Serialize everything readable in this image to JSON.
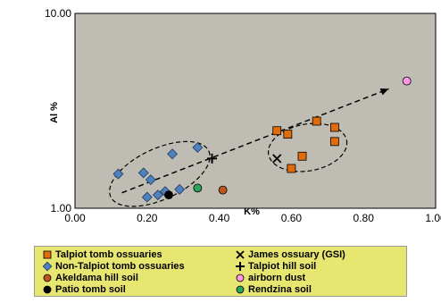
{
  "chart_data": {
    "type": "scatter",
    "xlabel": "K%",
    "ylabel": "Al %",
    "xlim": [
      0,
      1
    ],
    "ylim": [
      1,
      10
    ],
    "y_scale": "log",
    "x_ticks": [
      "0.00",
      "0.20",
      "0.40",
      "0.60",
      "0.80",
      "1.00"
    ],
    "y_ticks": [
      "1.00",
      "10.00"
    ],
    "grid": false,
    "legend_position": "bottom",
    "colors": {
      "plot_bg": "#bfbdb3",
      "talpiot": "#e36c0a",
      "non_talpiot": "#4f81bd",
      "akeldama": "#c0561e",
      "airborn": "#ff99e6",
      "patio": "#000000",
      "rendzina": "#29a65a",
      "legend_bg": "#e6e671"
    },
    "series": [
      {
        "name": "Talpiot tomb ossuaries",
        "marker": "square",
        "points": [
          [
            0.56,
            2.5
          ],
          [
            0.59,
            2.4
          ],
          [
            0.67,
            2.8
          ],
          [
            0.72,
            2.6
          ],
          [
            0.72,
            2.2
          ],
          [
            0.63,
            1.85
          ],
          [
            0.6,
            1.6
          ]
        ]
      },
      {
        "name": "Non-Talpiot tomb ossuaries",
        "marker": "diamond",
        "points": [
          [
            0.12,
            1.5
          ],
          [
            0.19,
            1.52
          ],
          [
            0.21,
            1.4
          ],
          [
            0.27,
            1.9
          ],
          [
            0.34,
            2.05
          ],
          [
            0.25,
            1.22
          ],
          [
            0.23,
            1.17
          ],
          [
            0.2,
            1.14
          ],
          [
            0.29,
            1.25
          ]
        ]
      },
      {
        "name": "Akeldama hill soil",
        "marker": "circle",
        "points": [
          [
            0.41,
            1.24
          ]
        ]
      },
      {
        "name": "Patio tomb soil",
        "marker": "circle",
        "points": [
          [
            0.26,
            1.17
          ]
        ]
      },
      {
        "name": "James ossuary (GSI)",
        "marker": "x",
        "points": [
          [
            0.56,
            1.8
          ]
        ]
      },
      {
        "name": "Talpiot hill soil",
        "marker": "plus",
        "points": [
          [
            0.38,
            1.8
          ]
        ]
      },
      {
        "name": "airborn dust",
        "marker": "circle",
        "points": [
          [
            0.92,
            4.5
          ]
        ]
      },
      {
        "name": "Rendzina soil",
        "marker": "circle",
        "points": [
          [
            0.34,
            1.27
          ]
        ]
      }
    ],
    "trend_arrow": {
      "from": [
        0.13,
        1.2
      ],
      "to": [
        0.87,
        4.1
      ],
      "style": "dashed"
    },
    "ellipses": [
      {
        "label": "",
        "center": [
          0.235,
          1.5
        ],
        "rx_data": 0.15,
        "ry_decades": 0.13,
        "rotation_deg": -25
      },
      {
        "label": "",
        "center": [
          0.645,
          2.05
        ],
        "rx_data": 0.11,
        "ry_decades": 0.12,
        "rotation_deg": -10
      }
    ]
  },
  "legend": {
    "items": [
      {
        "label": "Talpiot tomb ossuaries",
        "symbol": "square"
      },
      {
        "label": "James ossuary (GSI)",
        "symbol": "x"
      },
      {
        "label": "Non-Talpiot tomb ossuaries",
        "symbol": "diamond"
      },
      {
        "label": "Talpiot hill soil",
        "symbol": "plus"
      },
      {
        "label": "Akeldama hill soil",
        "symbol": "circle"
      },
      {
        "label": "airborn dust",
        "symbol": "circle"
      },
      {
        "label": "Patio tomb soil",
        "symbol": "circle"
      },
      {
        "label": "Rendzina soil",
        "symbol": "circle"
      }
    ]
  }
}
